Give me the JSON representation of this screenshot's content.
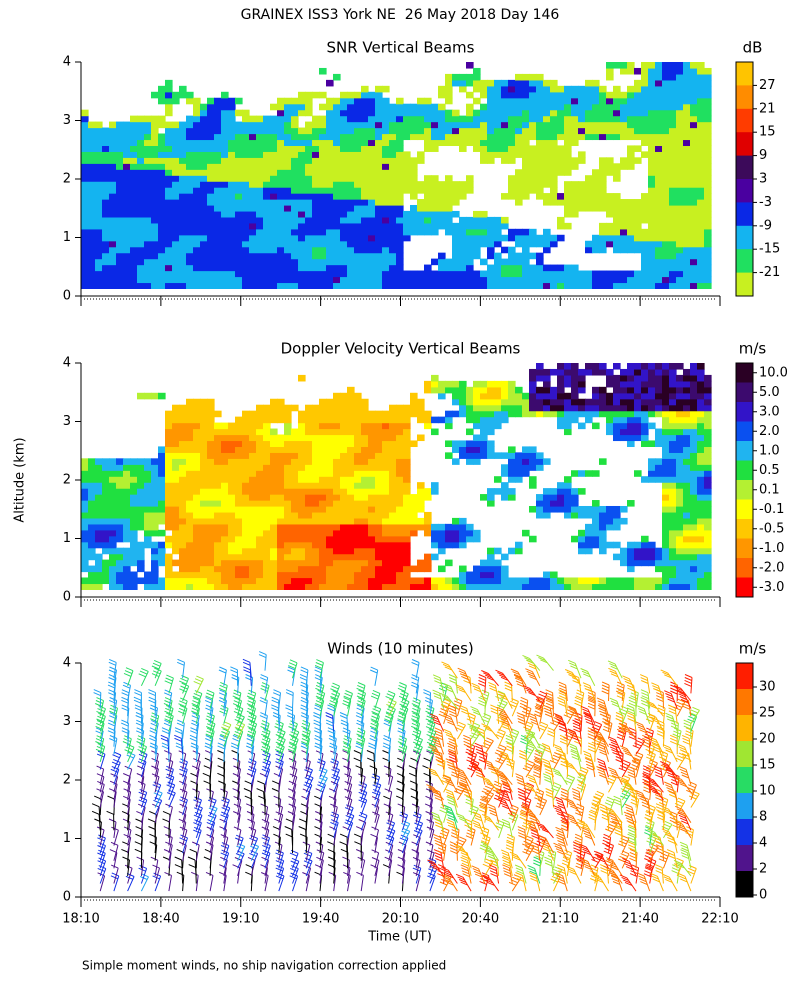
{
  "title": "GRAINEX ISS3 York NE  26 May 2018 Day 146",
  "y_label": "Altitude (km)",
  "note": "Simple moment winds, no ship navigation correction applied",
  "chart_data": [
    {
      "type": "contour",
      "title": "SNR Vertical Beams",
      "ylim": [
        0,
        4
      ],
      "yticks": [
        0,
        1,
        2,
        3,
        4
      ],
      "colorbar": {
        "label": "dB",
        "ticks": [
          27,
          21,
          15,
          9,
          3,
          -3,
          -9,
          -15,
          -21
        ],
        "colors": [
          "#ffc400",
          "#ff8c00",
          "#ff3c00",
          "#e00000",
          "#3c0a5a",
          "#4a00a0",
          "#0a28e6",
          "#14b4f0",
          "#20e060",
          "#c8f020"
        ]
      }
    },
    {
      "type": "contour",
      "title": "Doppler Velocity Vertical Beams",
      "ylim": [
        0,
        4
      ],
      "yticks": [
        0,
        1,
        2,
        3,
        4
      ],
      "colorbar": {
        "label": "m/s",
        "ticks": [
          {
            "value": 10,
            "label": "10.0"
          },
          {
            "value": 5,
            "label": "5.0"
          },
          {
            "value": 3,
            "label": "3.0"
          },
          {
            "value": 2,
            "label": "2.0"
          },
          {
            "value": 1,
            "label": "1.0"
          },
          {
            "value": 0.5,
            "label": "0.5"
          },
          {
            "value": 0.1,
            "label": "0.1"
          },
          {
            "value": -0.1,
            "label": "-0.1"
          },
          {
            "value": -0.5,
            "label": "-0.5"
          },
          {
            "value": -1,
            "label": "-1.0"
          },
          {
            "value": -2,
            "label": "-2.0"
          },
          {
            "value": -3,
            "label": "-3.0"
          }
        ],
        "colors": [
          "#2a0024",
          "#3c0a6e",
          "#3214c8",
          "#0a50f0",
          "#20b4f0",
          "#20e040",
          "#b4f032",
          "#ffff00",
          "#ffc800",
          "#ff9600",
          "#ff6400",
          "#ff0000"
        ]
      }
    },
    {
      "type": "barbs",
      "title": "Winds (10 minutes)",
      "ylim": [
        0,
        4
      ],
      "yticks": [
        0,
        1,
        2,
        3,
        4
      ],
      "categories": [
        "18:10",
        "18:40",
        "19:10",
        "19:40",
        "20:10",
        "20:40",
        "21:10",
        "21:40",
        "22:10"
      ],
      "x_label": "Time (UT)",
      "colorbar": {
        "label": "m/s",
        "ticks": [
          30,
          25,
          20,
          15,
          10,
          8,
          4,
          2,
          0
        ],
        "colors": [
          "#ff1e00",
          "#ff7800",
          "#ffb400",
          "#a0e632",
          "#28dc64",
          "#1ea0f0",
          "#1432e6",
          "#50148c",
          "#000000"
        ]
      }
    }
  ]
}
